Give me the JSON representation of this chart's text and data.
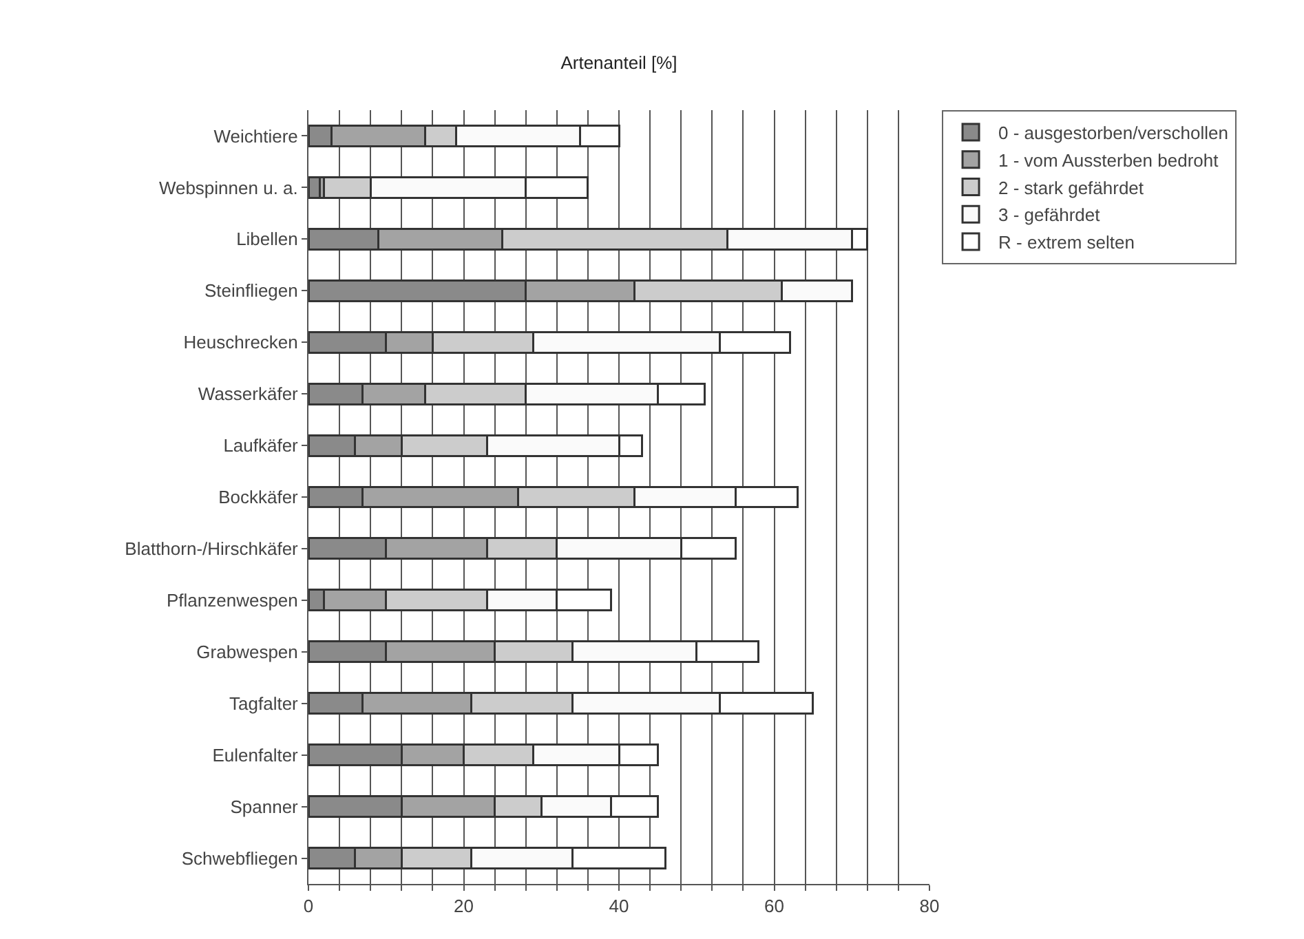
{
  "chart_data": {
    "type": "bar",
    "title": "Artenanteil [%]",
    "orientation": "horizontal",
    "stacked": true,
    "categories": [
      "Weichtiere",
      "Webspinnen u. a.",
      "Libellen",
      "Steinfliegen",
      "Heuschrecken",
      "Wasserkäfer",
      "Laufkäfer",
      "Bockkäfer",
      "Blatthorn-/Hirschkäfer",
      "Pflanzenwespen",
      "Grabwespen",
      "Tagfalter",
      "Eulenfalter",
      "Spanner",
      "Schwebfliegen"
    ],
    "series": [
      {
        "name": "0 - ausgestorben/verschollen",
        "color": "#8a8a8a",
        "values": [
          3,
          1.5,
          9,
          28,
          10,
          7,
          6,
          7,
          10,
          2,
          10,
          7,
          12,
          12,
          6
        ]
      },
      {
        "name": "1 - vom Aussterben bedroht",
        "color": "#a3a3a3",
        "values": [
          12,
          0.5,
          16,
          14,
          6,
          8,
          6,
          20,
          13,
          8,
          14,
          14,
          8,
          12,
          6
        ]
      },
      {
        "name": "2 - stark gefährdet",
        "color": "#cccccc",
        "values": [
          4,
          6,
          29,
          19,
          13,
          13,
          11,
          15,
          9,
          13,
          10,
          13,
          9,
          6,
          9
        ]
      },
      {
        "name": "3 - gefährdet",
        "color": "#fafafa",
        "values": [
          16,
          20,
          16,
          9,
          24,
          17,
          17,
          13,
          16,
          9,
          16,
          19,
          11,
          9,
          13
        ]
      },
      {
        "name": "R - extrem selten",
        "color": "#ffffff",
        "values": [
          5,
          8,
          2,
          null,
          9,
          6,
          3,
          8,
          7,
          7,
          8,
          12,
          5,
          6,
          12
        ]
      }
    ],
    "xlim": [
      0,
      80
    ],
    "xticks": [
      0,
      {
        "value": 4,
        "label": null
      },
      {
        "value": 8,
        "label": null
      },
      {
        "value": 12,
        "label": null
      },
      {
        "value": 16,
        "label": null
      },
      20,
      {
        "value": 24,
        "label": null
      },
      {
        "value": 28,
        "label": null
      },
      {
        "value": 32,
        "label": null
      },
      {
        "value": 36,
        "label": null
      },
      40,
      {
        "value": 44,
        "label": null
      },
      {
        "value": 48,
        "label": null
      },
      {
        "value": 52,
        "label": null
      },
      {
        "value": 56,
        "label": null
      },
      60,
      {
        "value": 64,
        "label": null
      },
      {
        "value": 68,
        "label": null
      },
      {
        "value": 72,
        "label": null
      },
      {
        "value": 76,
        "label": null
      },
      80
    ],
    "grid": "x",
    "legend": "top right"
  }
}
